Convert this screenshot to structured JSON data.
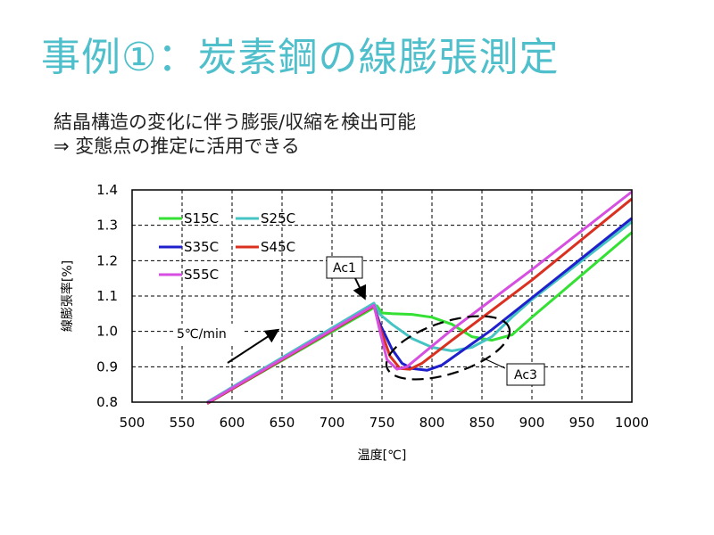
{
  "slide": {
    "title": "事例①：炭素鋼の線膨張測定",
    "bullets": [
      "結晶構造の変化に伴う膨張/収縮を検出可能",
      "⇒ 変態点の推定に活用できる"
    ]
  },
  "chart_data": {
    "type": "line",
    "xlabel": "温度[℃]",
    "ylabel": "線膨張率[%]",
    "xlim": [
      500,
      1000
    ],
    "ylim": [
      0.8,
      1.4
    ],
    "xticks": [
      500,
      550,
      600,
      650,
      700,
      750,
      800,
      850,
      900,
      950,
      1000
    ],
    "yticks": [
      "0.8",
      "0.9",
      "1.0",
      "1.1",
      "1.2",
      "1.3",
      "1.4"
    ],
    "grid": true,
    "legend_position": "top-left",
    "series": [
      {
        "name": "S15C",
        "color": "#33e033",
        "points": [
          [
            575,
            0.796
          ],
          [
            745,
            1.072
          ],
          [
            750,
            1.052
          ],
          [
            760,
            1.05
          ],
          [
            780,
            1.048
          ],
          [
            800,
            1.04
          ],
          [
            820,
            1.02
          ],
          [
            840,
            0.985
          ],
          [
            860,
            0.975
          ],
          [
            880,
            0.99
          ],
          [
            900,
            1.04
          ],
          [
            1000,
            1.28
          ]
        ]
      },
      {
        "name": "S25C",
        "color": "#46c4c4",
        "points": [
          [
            575,
            0.8
          ],
          [
            742,
            1.08
          ],
          [
            748,
            1.048
          ],
          [
            760,
            1.02
          ],
          [
            780,
            0.98
          ],
          [
            800,
            0.955
          ],
          [
            820,
            0.945
          ],
          [
            840,
            0.955
          ],
          [
            860,
            0.985
          ],
          [
            880,
            1.04
          ],
          [
            900,
            1.09
          ],
          [
            1000,
            1.31
          ]
        ]
      },
      {
        "name": "S35C",
        "color": "#1f1fcc",
        "points": [
          [
            575,
            0.796
          ],
          [
            742,
            1.072
          ],
          [
            748,
            1.02
          ],
          [
            760,
            0.95
          ],
          [
            770,
            0.91
          ],
          [
            780,
            0.895
          ],
          [
            795,
            0.89
          ],
          [
            810,
            0.905
          ],
          [
            830,
            0.945
          ],
          [
            860,
            1.005
          ],
          [
            900,
            1.095
          ],
          [
            1000,
            1.32
          ]
        ]
      },
      {
        "name": "S45C",
        "color": "#d93020",
        "points": [
          [
            575,
            0.796
          ],
          [
            742,
            1.072
          ],
          [
            748,
            1.01
          ],
          [
            758,
            0.93
          ],
          [
            768,
            0.895
          ],
          [
            778,
            0.893
          ],
          [
            790,
            0.91
          ],
          [
            820,
            0.975
          ],
          [
            860,
            1.06
          ],
          [
            900,
            1.145
          ],
          [
            1000,
            1.375
          ]
        ]
      },
      {
        "name": "S55C",
        "color": "#d64fe0",
        "points": [
          [
            575,
            0.798
          ],
          [
            742,
            1.074
          ],
          [
            748,
            1.0
          ],
          [
            755,
            0.92
          ],
          [
            765,
            0.893
          ],
          [
            775,
            0.9
          ],
          [
            790,
            0.935
          ],
          [
            820,
            1.005
          ],
          [
            860,
            1.09
          ],
          [
            900,
            1.175
          ],
          [
            1000,
            1.395
          ]
        ]
      }
    ],
    "annotations": [
      {
        "label": "Ac1"
      },
      {
        "label": "Ac3"
      },
      {
        "label": "5℃/min"
      }
    ]
  }
}
